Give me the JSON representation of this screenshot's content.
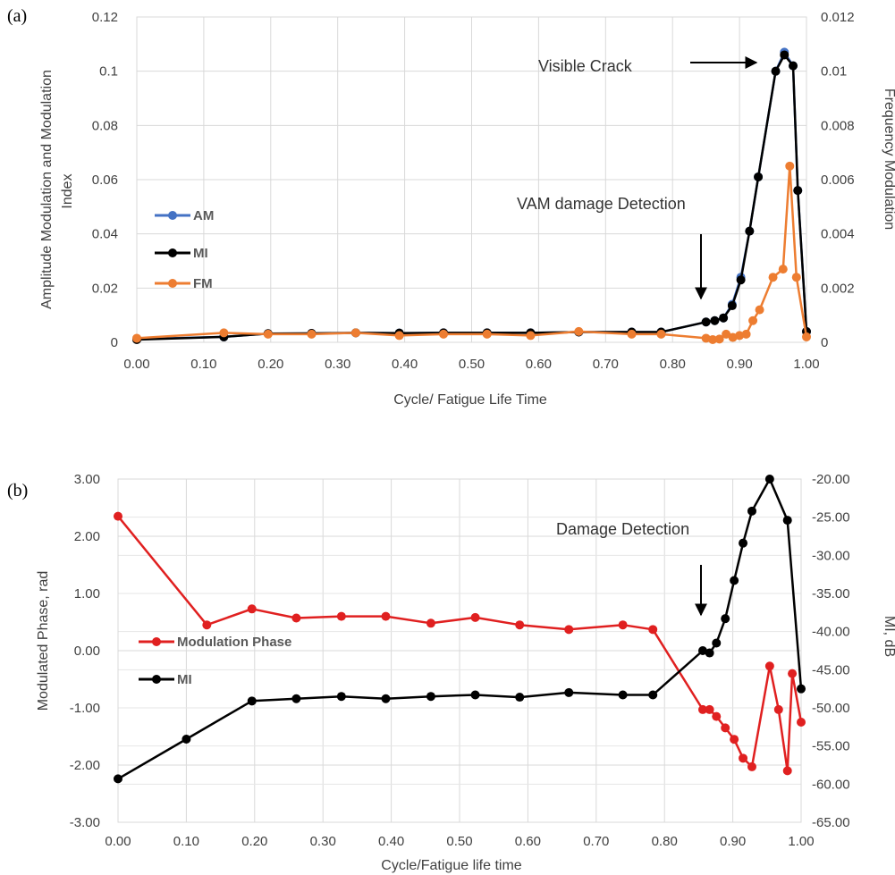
{
  "chart_data": [
    {
      "type": "line",
      "panel_label": "(a)",
      "xlabel": "Cycle/ Fatigue Life Time",
      "ylabel_left_line1": "Amplitude Modulation and Modulation",
      "ylabel_left_line2": "Index",
      "ylabel_right": "Frequency Modulation",
      "xlim": [
        0,
        1
      ],
      "ylim_left": [
        0,
        0.12
      ],
      "ylim_right": [
        0,
        0.012
      ],
      "xticks": [
        "0.00",
        "0.10",
        "0.20",
        "0.30",
        "0.40",
        "0.50",
        "0.60",
        "0.70",
        "0.80",
        "0.90",
        "1.00"
      ],
      "yticks_left": [
        "0",
        "0.02",
        "0.04",
        "0.06",
        "0.08",
        "0.1",
        "0.12"
      ],
      "yticks_right": [
        "0",
        "0.002",
        "0.004",
        "0.006",
        "0.008",
        "0.01",
        "0.012"
      ],
      "grid": true,
      "legend_position": "left-middle",
      "series": [
        {
          "name": "AM",
          "axis": "left",
          "color": "#4472C4",
          "x": [
            0,
            0.13,
            0.196,
            0.261,
            0.327,
            0.392,
            0.458,
            0.523,
            0.588,
            0.66,
            0.739,
            0.783,
            0.85,
            0.863,
            0.876,
            0.889,
            0.902,
            0.915,
            0.928,
            0.954,
            0.967,
            0.98,
            0.987,
            1.0
          ],
          "y": [
            0.0012,
            0.002,
            0.0032,
            0.0033,
            0.0035,
            0.0034,
            0.0035,
            0.0035,
            0.0035,
            0.0038,
            0.0038,
            0.0038,
            0.0075,
            0.008,
            0.009,
            0.014,
            0.024,
            0.041,
            0.061,
            0.1,
            0.107,
            0.102,
            0.056,
            0.004
          ]
        },
        {
          "name": "MI",
          "axis": "left",
          "color": "#000000",
          "x": [
            0,
            0.13,
            0.196,
            0.261,
            0.327,
            0.392,
            0.458,
            0.523,
            0.588,
            0.66,
            0.739,
            0.783,
            0.85,
            0.863,
            0.876,
            0.889,
            0.902,
            0.915,
            0.928,
            0.954,
            0.967,
            0.98,
            0.987,
            1.0
          ],
          "y": [
            0.001,
            0.002,
            0.0032,
            0.0033,
            0.0035,
            0.0034,
            0.0035,
            0.0035,
            0.0035,
            0.0038,
            0.0038,
            0.0038,
            0.0075,
            0.008,
            0.009,
            0.0135,
            0.023,
            0.041,
            0.061,
            0.1,
            0.106,
            0.102,
            0.056,
            0.004
          ]
        },
        {
          "name": "FM",
          "axis": "right",
          "color": "#ED7D31",
          "x": [
            0,
            0.13,
            0.196,
            0.261,
            0.327,
            0.392,
            0.458,
            0.523,
            0.588,
            0.66,
            0.739,
            0.783,
            0.85,
            0.86,
            0.87,
            0.88,
            0.89,
            0.9,
            0.91,
            0.92,
            0.93,
            0.95,
            0.965,
            0.975,
            0.985,
            1.0
          ],
          "y": [
            0.00015,
            0.00035,
            0.0003,
            0.0003,
            0.00035,
            0.00025,
            0.0003,
            0.0003,
            0.00025,
            0.0004,
            0.0003,
            0.0003,
            0.00015,
            0.0001,
            0.00012,
            0.0003,
            0.00018,
            0.00025,
            0.0003,
            0.0008,
            0.0012,
            0.0024,
            0.0027,
            0.0065,
            0.0024,
            0.0002
          ]
        }
      ],
      "annotations": [
        {
          "text": "Visible Crack"
        },
        {
          "text": "VAM damage Detection"
        }
      ]
    },
    {
      "type": "line",
      "panel_label": "(b)",
      "xlabel": "Cycle/Fatigue life time",
      "ylabel_left": "Modulated Phase, rad",
      "ylabel_right": "MI, dB",
      "xlim": [
        0,
        1
      ],
      "ylim_left": [
        -3,
        3
      ],
      "ylim_right": [
        -65,
        -20
      ],
      "xticks": [
        "0.00",
        "0.10",
        "0.20",
        "0.30",
        "0.40",
        "0.50",
        "0.60",
        "0.70",
        "0.80",
        "0.90",
        "1.00"
      ],
      "yticks_left": [
        "3.00",
        "2.00",
        "1.00",
        "0.00",
        "-1.00",
        "-2.00",
        "-3.00"
      ],
      "yticks_right": [
        "-20.00",
        "-25.00",
        "-30.00",
        "-35.00",
        "-40.00",
        "-45.00",
        "-50.00",
        "-55.00",
        "-60.00",
        "-65.00"
      ],
      "grid": true,
      "legend_position": "left-middle",
      "series": [
        {
          "name": "Modulation Phase",
          "axis": "left",
          "color": "#E02020",
          "x": [
            0,
            0.13,
            0.196,
            0.261,
            0.327,
            0.392,
            0.458,
            0.523,
            0.588,
            0.66,
            0.739,
            0.783,
            0.856,
            0.866,
            0.876,
            0.889,
            0.902,
            0.915,
            0.928,
            0.954,
            0.967,
            0.98,
            0.987,
            1.0
          ],
          "y": [
            2.35,
            0.45,
            0.73,
            0.57,
            0.6,
            0.6,
            0.48,
            0.58,
            0.45,
            0.37,
            0.45,
            0.37,
            -1.03,
            -1.03,
            -1.15,
            -1.35,
            -1.55,
            -1.88,
            -2.03,
            -0.27,
            -1.03,
            -2.1,
            -0.4,
            -1.25
          ]
        },
        {
          "name": "MI",
          "axis": "right",
          "color": "#000000",
          "x": [
            0,
            0.1,
            0.196,
            0.261,
            0.327,
            0.392,
            0.458,
            0.523,
            0.588,
            0.66,
            0.739,
            0.783,
            0.856,
            0.866,
            0.876,
            0.889,
            0.902,
            0.915,
            0.928,
            0.954,
            0.98,
            1.0
          ],
          "y": [
            -59.3,
            -54.1,
            -49.1,
            -48.8,
            -48.5,
            -48.8,
            -48.5,
            -48.3,
            -48.6,
            -48.0,
            -48.3,
            -48.3,
            -42.5,
            -42.8,
            -41.5,
            -38.3,
            -33.3,
            -28.4,
            -24.2,
            -20.0,
            -25.4,
            -47.5
          ]
        }
      ],
      "annotations": [
        {
          "text": "Damage Detection"
        }
      ]
    }
  ]
}
